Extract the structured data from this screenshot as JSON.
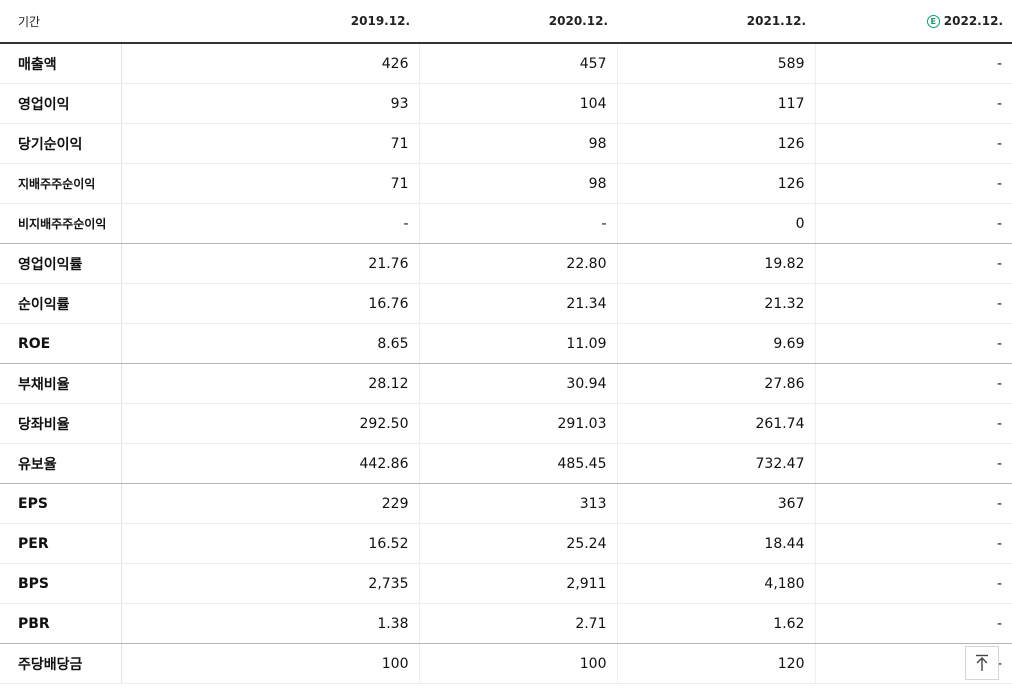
{
  "header": {
    "period_label": "기간",
    "estimate_mark": "E",
    "columns": [
      "2019.12.",
      "2020.12.",
      "2021.12.",
      "2022.12."
    ]
  },
  "rows": [
    {
      "label": "매출액",
      "values": [
        "426",
        "457",
        "589",
        "-"
      ]
    },
    {
      "label": "영업이익",
      "values": [
        "93",
        "104",
        "117",
        "-"
      ]
    },
    {
      "label": "당기순이익",
      "values": [
        "71",
        "98",
        "126",
        "-"
      ]
    },
    {
      "label": "지배주주순이익",
      "values": [
        "71",
        "98",
        "126",
        "-"
      ]
    },
    {
      "label": "비지배주주순이익",
      "values": [
        "-",
        "-",
        "0",
        "-"
      ]
    },
    {
      "label": "영업이익률",
      "values": [
        "21.76",
        "22.80",
        "19.82",
        "-"
      ]
    },
    {
      "label": "순이익률",
      "values": [
        "16.76",
        "21.34",
        "21.32",
        "-"
      ]
    },
    {
      "label": "ROE",
      "values": [
        "8.65",
        "11.09",
        "9.69",
        "-"
      ]
    },
    {
      "label": "부채비율",
      "values": [
        "28.12",
        "30.94",
        "27.86",
        "-"
      ]
    },
    {
      "label": "당좌비율",
      "values": [
        "292.50",
        "291.03",
        "261.74",
        "-"
      ]
    },
    {
      "label": "유보율",
      "values": [
        "442.86",
        "485.45",
        "732.47",
        "-"
      ]
    },
    {
      "label": "EPS",
      "values": [
        "229",
        "313",
        "367",
        "-"
      ]
    },
    {
      "label": "PER",
      "values": [
        "16.52",
        "25.24",
        "18.44",
        "-"
      ]
    },
    {
      "label": "BPS",
      "values": [
        "2,735",
        "2,911",
        "4,180",
        "-"
      ]
    },
    {
      "label": "PBR",
      "values": [
        "1.38",
        "2.71",
        "1.62",
        "-"
      ]
    },
    {
      "label": "주당배당금",
      "values": [
        "100",
        "100",
        "120",
        "-"
      ]
    }
  ],
  "scroll_top_icon": "arrow-up-to-line-icon"
}
